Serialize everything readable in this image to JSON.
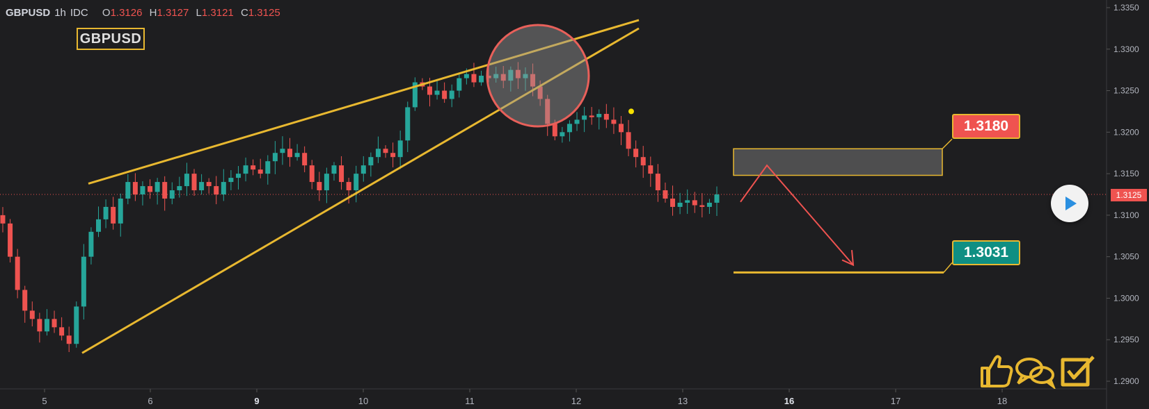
{
  "header": {
    "symbol": "GBPUSD",
    "timeframe": "1h",
    "source": "IDC",
    "open_label": "O",
    "open": "1.3126",
    "high_label": "H",
    "high": "1.3127",
    "low_label": "L",
    "low": "1.3121",
    "close_label": "C",
    "close": "1.3125"
  },
  "badge": "GBPUSD",
  "labels": {
    "resistance": "1.3180",
    "target": "1.3031",
    "current": "1.3125"
  },
  "colors": {
    "background": "#1e1e20",
    "up_candle": "#26a69a",
    "down_candle": "#ef5350",
    "drawing": "#e8b830",
    "arrow": "#ef5350",
    "axis_text": "#b2b5be"
  },
  "icons": [
    "play-icon",
    "thumbs-up-icon",
    "speech-bubbles-icon",
    "checkmark-icon"
  ],
  "chart_data": {
    "type": "candlestick",
    "y_ticks": [
      "1.3350",
      "1.3300",
      "1.3250",
      "1.3200",
      "1.3150",
      "1.3100",
      "1.3050",
      "1.3000",
      "1.2950",
      "1.2900"
    ],
    "x_ticks": [
      "5",
      "6",
      "9",
      "10",
      "11",
      "12",
      "13",
      "16",
      "17",
      "18"
    ],
    "x_ticks_bold": [
      "9",
      "16"
    ],
    "ylim": [
      1.2895,
      1.3355
    ],
    "rising_wedge": {
      "upper": [
        [
          1.3138,
          1.3335
        ]
      ],
      "lower": [
        [
          1.2934,
          1.3325
        ]
      ]
    },
    "resistance_zone": [
      1.3148,
      1.318
    ],
    "target_level": 1.3031,
    "current_price": 1.3125,
    "series_close_path": [
      1.309,
      1.305,
      1.301,
      1.2985,
      1.2975,
      1.296,
      1.2975,
      1.2965,
      1.2955,
      1.2945,
      1.299,
      1.305,
      1.308,
      1.3095,
      1.311,
      1.309,
      1.312,
      1.314,
      1.3125,
      1.3135,
      1.3128,
      1.314,
      1.312,
      1.313,
      1.3135,
      1.315,
      1.313,
      1.314,
      1.3135,
      1.3125,
      1.314,
      1.3145,
      1.315,
      1.316,
      1.3155,
      1.315,
      1.3165,
      1.3175,
      1.318,
      1.317,
      1.3175,
      1.316,
      1.314,
      1.313,
      1.315,
      1.316,
      1.314,
      1.313,
      1.315,
      1.316,
      1.317,
      1.318,
      1.3175,
      1.317,
      1.319,
      1.323,
      1.326,
      1.3255,
      1.3245,
      1.325,
      1.324,
      1.325,
      1.3265,
      1.327,
      1.326,
      1.3268,
      1.3265,
      1.327,
      1.3262,
      1.3275,
      1.3265,
      1.327,
      1.3255,
      1.324,
      1.321,
      1.3195,
      1.32,
      1.321,
      1.3215,
      1.322,
      1.3218,
      1.3222,
      1.3215,
      1.321,
      1.32,
      1.318,
      1.317,
      1.316,
      1.315,
      1.313,
      1.312,
      1.311,
      1.3115,
      1.3118,
      1.3112,
      1.311,
      1.3115,
      1.3125
    ]
  }
}
